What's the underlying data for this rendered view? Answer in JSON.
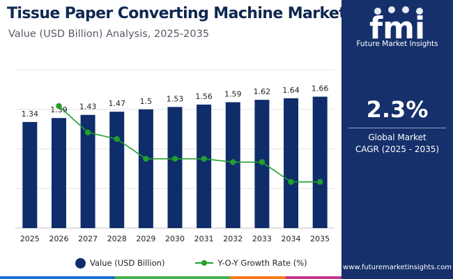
{
  "header": {
    "title": "Tissue Paper Converting Machine Market",
    "subtitle": "Value (USD Billion) Analysis, 2025-2035"
  },
  "chart_data": {
    "type": "bar",
    "categories": [
      "2025",
      "2026",
      "2027",
      "2028",
      "2029",
      "2030",
      "2031",
      "2032",
      "2033",
      "2034",
      "2035"
    ],
    "series": [
      {
        "name": "Value (USD Billion)",
        "kind": "bar",
        "color": "#0f2d6b",
        "values": [
          1.34,
          1.39,
          1.43,
          1.47,
          1.5,
          1.53,
          1.56,
          1.59,
          1.62,
          1.64,
          1.66
        ],
        "labels": [
          "1.34",
          "1.39",
          "1.43",
          "1.47",
          "1.5",
          "1.53",
          "1.56",
          "1.59",
          "1.62",
          "1.64",
          "1.66"
        ]
      },
      {
        "name": "Y-O-Y Growth Rate (%)",
        "kind": "line",
        "color": "#21a02c",
        "x": [
          "2026",
          "2027",
          "2028",
          "2029",
          "2030",
          "2031",
          "2032",
          "2033",
          "2034",
          "2035"
        ],
        "values": [
          3.7,
          2.9,
          2.7,
          2.1,
          2.1,
          2.1,
          2.0,
          2.0,
          1.4,
          1.4
        ]
      }
    ],
    "ylim": [
      0,
      2.0
    ],
    "y2lim": [
      0,
      4.8
    ],
    "grid": true,
    "legend_position": "bottom",
    "xlabel": "",
    "ylabel": ""
  },
  "legend": {
    "bar_label": "Value (USD Billion)",
    "line_label": "Y-O-Y Growth Rate (%)"
  },
  "sidebar": {
    "logo_text": "fmi",
    "logo_tagline": "Future Market Insights",
    "cagr_value": "2.3%",
    "cagr_line1": "Global Market",
    "cagr_line2": "CAGR (2025 - 2035)",
    "website": "www.futuremarketinsights.com"
  },
  "colors": {
    "bar": "#0f2d6b",
    "line": "#21a02c",
    "panel": "#15306b",
    "title": "#0f2850",
    "stripe": [
      "#1e6fd0",
      "#4caf50",
      "#ff7a1a",
      "#c23b8c"
    ]
  }
}
